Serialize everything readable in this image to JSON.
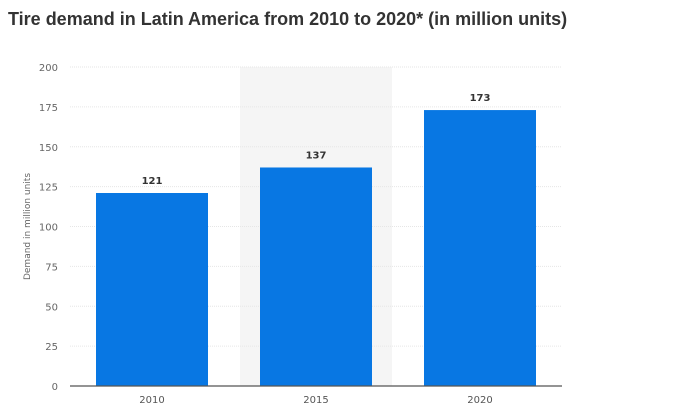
{
  "chart_data": {
    "type": "bar",
    "title": "Tire demand in Latin America from 2010 to 2020* (in million units)",
    "xlabel": "",
    "ylabel": "Demand in million units",
    "categories": [
      "2010",
      "2015",
      "2020"
    ],
    "values": [
      121,
      137,
      173
    ],
    "ylim": [
      0,
      200
    ],
    "yticks": [
      0,
      25,
      50,
      75,
      100,
      125,
      150,
      175,
      200
    ],
    "grid": true,
    "highlighted_category": "2015",
    "colors": {
      "bar": "#0877e3",
      "highlight": "#f5f5f5",
      "grid": "#e6e6e6",
      "axis": "#555555"
    }
  }
}
